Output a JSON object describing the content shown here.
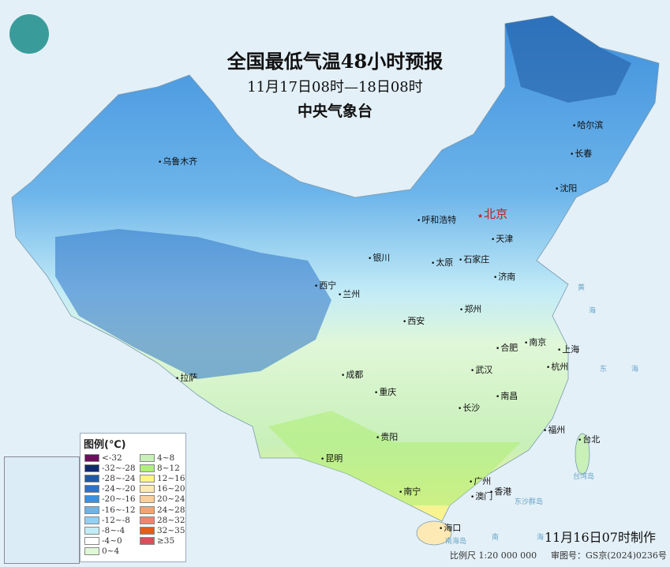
{
  "header": {
    "title": "全国最低气温48小时预报",
    "period": "11月17日08时—18日08时",
    "issuer": "中央气象台"
  },
  "logo": {
    "icon": "cma-logo",
    "color": "#3a9c9a"
  },
  "cities": {
    "capital": "北京",
    "list": [
      "哈尔滨",
      "长春",
      "沈阳",
      "乌鲁木齐",
      "呼和浩特",
      "天津",
      "银川",
      "太原",
      "石家庄",
      "西宁",
      "兰州",
      "济南",
      "西安",
      "郑州",
      "南京",
      "合肥",
      "上海",
      "杭州",
      "拉萨",
      "成都",
      "武汉",
      "重庆",
      "南昌",
      "长沙",
      "贵阳",
      "福州",
      "台北",
      "昆明",
      "广州",
      "香港",
      "澳门",
      "南宁",
      "海口"
    ]
  },
  "seas": [
    "黄",
    "海",
    "东",
    "海",
    "南",
    "海",
    "台湾岛",
    "东沙群岛",
    "南海岛"
  ],
  "legend": {
    "title": "图例(℃)",
    "items": [
      {
        "label": "<-32",
        "color": "#6b0f5c"
      },
      {
        "label": "-32~-28",
        "color": "#0e2a6e"
      },
      {
        "label": "-28~-24",
        "color": "#1f5aa0"
      },
      {
        "label": "-24~-20",
        "color": "#2c72c8"
      },
      {
        "label": "-20~-16",
        "color": "#3f8fdc"
      },
      {
        "label": "-16~-12",
        "color": "#6cb4ea"
      },
      {
        "label": "-12~-8",
        "color": "#93d0f2"
      },
      {
        "label": "-8~-4",
        "color": "#c4ecf7"
      },
      {
        "label": "-4~0",
        "color": "#ffffff"
      },
      {
        "label": "0~4",
        "color": "#e0f7d8"
      },
      {
        "label": "4~8",
        "color": "#c8f0b8"
      },
      {
        "label": "8~12",
        "color": "#b0ef7a"
      },
      {
        "label": "12~16",
        "color": "#fff58a"
      },
      {
        "label": "16~20",
        "color": "#fde9b4"
      },
      {
        "label": "20~24",
        "color": "#f9cf9d"
      },
      {
        "label": "24~28",
        "color": "#f3a56e"
      },
      {
        "label": "28~32",
        "color": "#ef8474"
      },
      {
        "label": "32~35",
        "color": "#e55c1e"
      },
      {
        "label": "≥35",
        "color": "#d9505a"
      }
    ]
  },
  "footer": {
    "made_time": "11月16日07时制作",
    "scale": "比例尺 1:20 000 000",
    "review_no": "审图号：GS京(2024)0236号"
  }
}
